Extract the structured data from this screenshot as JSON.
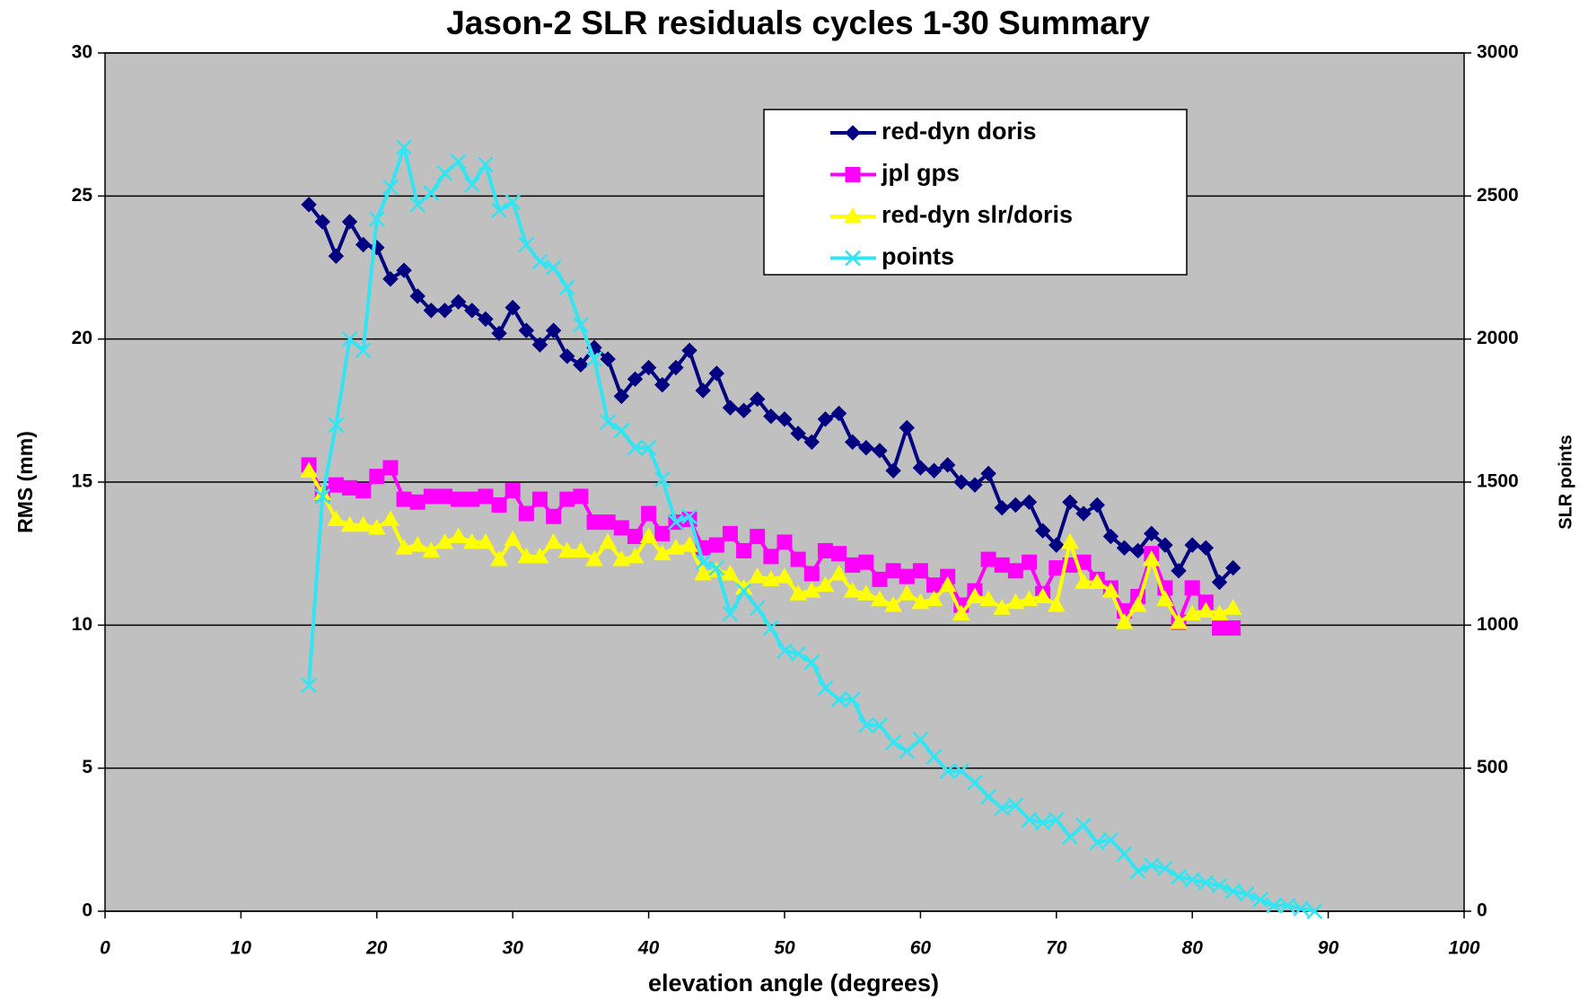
{
  "chart_data": {
    "type": "line",
    "title": "Jason-2 SLR residuals cycles 1-30 Summary",
    "x_label": "elevation angle (degrees)",
    "y_label": "RMS (mm)",
    "y2_label": "SLR points",
    "x": [
      15,
      16,
      17,
      18,
      19,
      20,
      21,
      22,
      23,
      24,
      25,
      26,
      27,
      28,
      29,
      30,
      31,
      32,
      33,
      34,
      35,
      36,
      37,
      38,
      39,
      40,
      41,
      42,
      43,
      44,
      45,
      46,
      47,
      48,
      49,
      50,
      51,
      52,
      53,
      54,
      55,
      56,
      57,
      58,
      59,
      60,
      61,
      62,
      63,
      64,
      65,
      66,
      67,
      68,
      69,
      70,
      71,
      72,
      73,
      74,
      75,
      76,
      77,
      78,
      79,
      80,
      81,
      82,
      83,
      84,
      85,
      86,
      87,
      88,
      89
    ],
    "series": [
      {
        "name": "red-dyn doris",
        "color": "#000080",
        "marker": "diamond",
        "values": [
          24.7,
          24.1,
          22.9,
          24.1,
          23.3,
          23.2,
          22.1,
          22.4,
          21.5,
          21.0,
          21.0,
          21.3,
          21.0,
          20.7,
          20.2,
          21.1,
          20.3,
          19.8,
          20.3,
          19.4,
          19.1,
          19.7,
          19.3,
          18.0,
          18.6,
          19.0,
          18.4,
          19.0,
          19.6,
          18.2,
          18.8,
          17.6,
          17.5,
          17.9,
          17.3,
          17.2,
          16.7,
          16.4,
          17.2,
          17.4,
          16.4,
          16.2,
          16.1,
          15.4,
          16.9,
          15.5,
          15.4,
          15.6,
          15.0,
          14.9,
          15.3,
          14.1,
          14.2,
          14.3,
          13.3,
          12.8,
          14.3,
          13.9,
          14.2,
          13.1,
          12.7,
          12.6,
          13.2,
          12.8,
          11.9,
          12.8,
          12.7,
          11.5,
          12.0,
          null,
          null,
          null,
          null,
          null,
          null
        ]
      },
      {
        "name": "jpl gps",
        "color": "#ff00ff",
        "marker": "square",
        "values": [
          15.6,
          14.6,
          14.9,
          14.8,
          14.7,
          15.2,
          15.5,
          14.4,
          14.3,
          14.5,
          14.5,
          14.4,
          14.4,
          14.5,
          14.2,
          14.7,
          13.9,
          14.4,
          13.8,
          14.4,
          14.5,
          13.6,
          13.6,
          13.4,
          13.1,
          13.9,
          13.2,
          13.6,
          13.7,
          12.7,
          12.8,
          13.2,
          12.6,
          13.1,
          12.4,
          12.9,
          12.3,
          11.8,
          12.6,
          12.5,
          12.1,
          12.2,
          11.6,
          11.9,
          11.7,
          11.9,
          11.4,
          11.7,
          10.7,
          11.2,
          12.3,
          12.1,
          11.9,
          12.2,
          11.1,
          12.0,
          12.1,
          12.2,
          11.6,
          11.3,
          10.5,
          11.0,
          12.5,
          11.3,
          10.1,
          11.3,
          10.8,
          9.9,
          9.9,
          null,
          null,
          null,
          null,
          null,
          null
        ]
      },
      {
        "name": "red-dyn slr/doris",
        "color": "#ffff00",
        "marker": "triangle",
        "values": [
          15.4,
          14.6,
          13.7,
          13.5,
          13.5,
          13.4,
          13.7,
          12.7,
          12.8,
          12.6,
          12.9,
          13.1,
          12.9,
          12.9,
          12.3,
          13.0,
          12.4,
          12.4,
          12.9,
          12.6,
          12.6,
          12.3,
          12.9,
          12.3,
          12.4,
          13.1,
          12.5,
          12.7,
          12.8,
          11.8,
          11.9,
          11.8,
          11.3,
          11.7,
          11.6,
          11.7,
          11.1,
          11.2,
          11.4,
          11.8,
          11.2,
          11.1,
          10.9,
          10.7,
          11.1,
          10.8,
          10.9,
          11.4,
          10.4,
          11.0,
          10.9,
          10.6,
          10.8,
          10.9,
          11.0,
          10.7,
          12.9,
          11.5,
          11.5,
          11.2,
          10.1,
          10.7,
          12.3,
          10.9,
          10.1,
          10.4,
          10.5,
          10.4,
          10.6,
          null,
          null,
          null,
          null,
          null,
          null
        ]
      },
      {
        "name": "points",
        "color": "#33e4f2",
        "marker": "x",
        "axis": "y2",
        "values": [
          790,
          1450,
          1700,
          2000,
          1960,
          2420,
          2530,
          2670,
          2470,
          2510,
          2580,
          2620,
          2540,
          2610,
          2450,
          2480,
          2330,
          2270,
          2250,
          2180,
          2050,
          1930,
          1710,
          1680,
          1620,
          1620,
          1510,
          1360,
          1380,
          1220,
          1200,
          1040,
          1120,
          1060,
          990,
          910,
          900,
          870,
          780,
          740,
          740,
          650,
          650,
          590,
          560,
          600,
          540,
          490,
          490,
          450,
          400,
          360,
          370,
          320,
          310,
          320,
          260,
          300,
          240,
          250,
          200,
          140,
          160,
          150,
          120,
          110,
          100,
          90,
          70,
          60,
          40,
          20,
          20,
          10,
          0
        ]
      }
    ],
    "xlim": [
      0,
      100
    ],
    "xticks": [
      0,
      10,
      20,
      30,
      40,
      50,
      60,
      70,
      80,
      90,
      100
    ],
    "ylim": [
      0,
      30
    ],
    "yticks": [
      0,
      5,
      10,
      15,
      20,
      25,
      30
    ],
    "y2lim": [
      0,
      3000
    ],
    "y2ticks": [
      0,
      500,
      1000,
      1500,
      2000,
      2500,
      3000
    ],
    "grid": true,
    "plot_background": "#c0c0c0",
    "legend": "upper center"
  }
}
